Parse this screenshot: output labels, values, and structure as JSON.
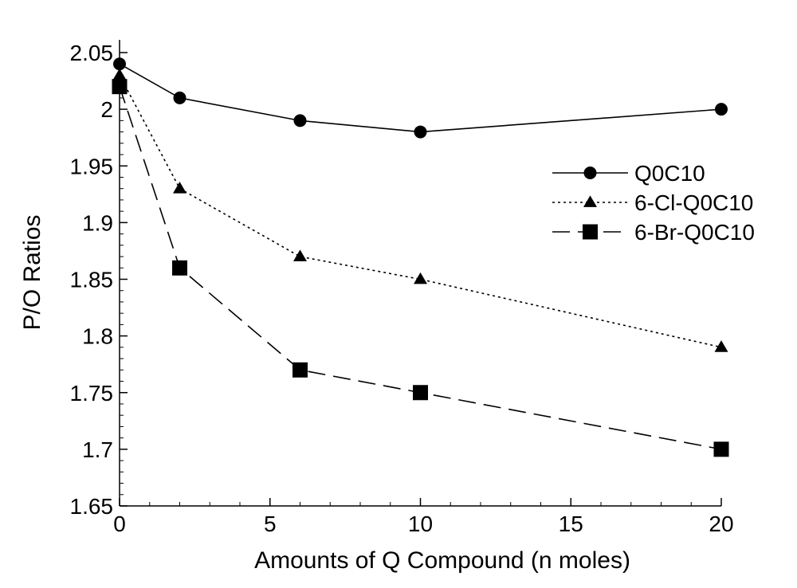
{
  "chart_data": {
    "type": "line",
    "title": "",
    "xlabel": "Amounts of Q Compound (n moles)",
    "ylabel": "P/O Ratios",
    "xlim": [
      0,
      20
    ],
    "ylim": [
      1.65,
      2.05
    ],
    "x_ticks": [
      0,
      5,
      10,
      15,
      20
    ],
    "x_tick_labels": [
      "0",
      "5",
      "10",
      "15",
      "20"
    ],
    "y_ticks": [
      1.65,
      1.7,
      1.75,
      1.8,
      1.85,
      1.9,
      1.95,
      2.0,
      2.05
    ],
    "y_tick_labels": [
      "1.65",
      "1.7",
      "1.75",
      "1.8",
      "1.85",
      "1.9",
      "1.95",
      "2",
      "2.05"
    ],
    "grid": false,
    "legend_position": "right",
    "series": [
      {
        "name": "Q0C10",
        "marker": "circle",
        "line_style": "solid",
        "color": "#000000",
        "x": [
          0,
          2,
          6,
          10,
          20
        ],
        "y": [
          2.04,
          2.01,
          1.99,
          1.98,
          2.0
        ]
      },
      {
        "name": "6-Cl-Q0C10",
        "marker": "triangle",
        "line_style": "dotted",
        "color": "#000000",
        "x": [
          0,
          2,
          6,
          10,
          20
        ],
        "y": [
          2.03,
          1.93,
          1.87,
          1.85,
          1.79
        ]
      },
      {
        "name": "6-Br-Q0C10",
        "marker": "square",
        "line_style": "dashed",
        "color": "#000000",
        "x": [
          0,
          2,
          6,
          10,
          20
        ],
        "y": [
          2.02,
          1.86,
          1.77,
          1.75,
          1.7
        ]
      }
    ]
  }
}
